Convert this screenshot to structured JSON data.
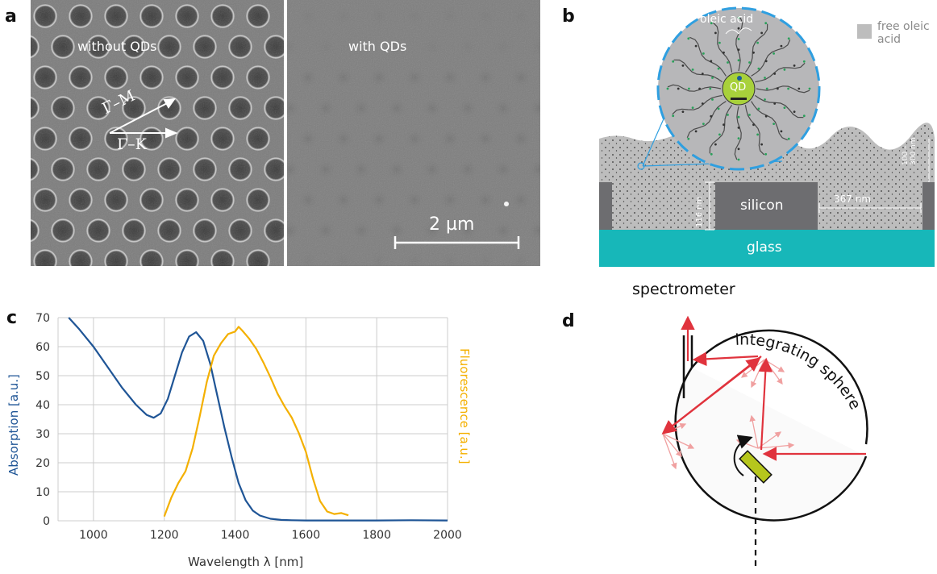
{
  "panels": {
    "a": {
      "letter": "a",
      "left_label": "without QDs",
      "right_label": "with QDs",
      "gamma_m": "Γ–M",
      "gamma_k": "Γ–K",
      "scale_bar": "2 µm"
    },
    "b": {
      "letter": "b",
      "oleic_acid": "oleic acid",
      "qd": "QD",
      "legend_line1": "free oleic",
      "legend_line2": "acid",
      "thickness_line1": "100 –",
      "thickness_line2": "300 nm",
      "height_116": "116 nm",
      "width_367": "367 nm",
      "silicon": "silicon",
      "glass": "glass",
      "colors": {
        "layer": "#bdbdbd",
        "silicon": "#6d6d70",
        "glass": "#17b7b9",
        "qd": "#a8d13b",
        "outline": "#2f9fe0"
      }
    },
    "c": {
      "letter": "c",
      "ylabel_left": "Absorption [a.u.]",
      "ylabel_right": "Fluorescence [a.u.]",
      "xlabel": "Wavelength λ [nm]"
    },
    "d": {
      "letter": "d",
      "spectrometer": "spectrometer",
      "integrating_sphere": "integrating sphere",
      "sample": "sample",
      "colors": {
        "ray": "#e0333d",
        "scatter": "#f0a0a0",
        "sample": "#b6c61d"
      }
    }
  },
  "chart_data": {
    "type": "line",
    "xlabel": "Wavelength λ [nm]",
    "ylabel": "Absorption [a.u.]",
    "y2label": "Fluorescence [a.u.]",
    "xlim": [
      900,
      2000
    ],
    "ylim": [
      0,
      70
    ],
    "x_ticks": [
      "1000",
      "1200",
      "1400",
      "1600",
      "1800",
      "2000"
    ],
    "y_ticks": [
      "0",
      "10",
      "20",
      "30",
      "40",
      "50",
      "60",
      "70"
    ],
    "grid": true,
    "series": [
      {
        "axis": "left",
        "color": "#1f5596",
        "x": [
          930,
          960,
          1000,
          1040,
          1080,
          1120,
          1150,
          1170,
          1190,
          1210,
          1230,
          1250,
          1270,
          1290,
          1310,
          1330,
          1350,
          1370,
          1390,
          1410,
          1430,
          1450,
          1470,
          1500,
          1530,
          1560,
          1600,
          1700,
          1800,
          1900,
          2000
        ],
        "y": [
          70,
          66,
          60,
          53,
          46,
          40,
          36.5,
          35.5,
          37,
          42,
          50,
          58,
          63.5,
          65,
          62,
          54,
          43,
          32,
          22,
          13,
          7,
          3.5,
          1.8,
          0.7,
          0.3,
          0.2,
          0.1,
          0.1,
          0.1,
          0.2,
          0.1
        ]
      },
      {
        "axis": "right",
        "color": "#f4b000",
        "x": [
          1200,
          1220,
          1240,
          1260,
          1280,
          1300,
          1320,
          1340,
          1360,
          1380,
          1400,
          1410,
          1420,
          1440,
          1460,
          1480,
          1500,
          1520,
          1540,
          1560,
          1580,
          1600,
          1620,
          1640,
          1660,
          1680,
          1700,
          1720
        ],
        "y": [
          1.5,
          7,
          12,
          17,
          26,
          37,
          48,
          56,
          60,
          64,
          66,
          68,
          66,
          62,
          58,
          54,
          50,
          45,
          40,
          35,
          29,
          23,
          15,
          8,
          4,
          2,
          1.5,
          1
        ]
      }
    ]
  }
}
